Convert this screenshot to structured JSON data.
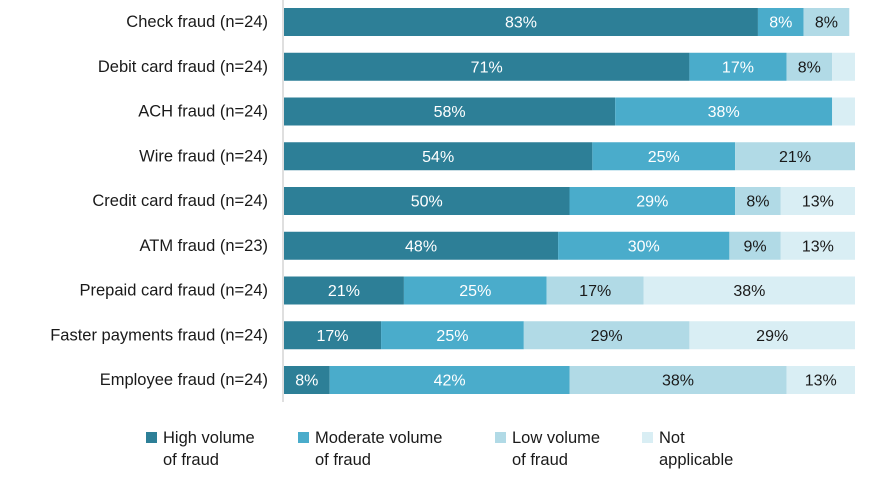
{
  "chart_data": {
    "type": "bar",
    "orientation": "horizontal",
    "stacked": true,
    "title": "",
    "xlabel": "",
    "ylabel": "",
    "xlim": [
      0,
      100
    ],
    "grid": false,
    "legend_position": "bottom",
    "categories": [
      "Check fraud (n=24)",
      "Debit card fraud (n=24)",
      "ACH fraud (n=24)",
      "Wire fraud (n=24)",
      "Credit card fraud (n=24)",
      "ATM fraud (n=23)",
      "Prepaid card fraud (n=24)",
      "Faster payments fraud (n=24)",
      "Employee fraud (n=24)"
    ],
    "series": [
      {
        "name": "High volume of fraud",
        "legend_label": "High volume\nof fraud",
        "color": "#2d7f97",
        "label_color": "#ffffff",
        "values": [
          83,
          71,
          58,
          54,
          50,
          48,
          21,
          17,
          8
        ]
      },
      {
        "name": "Moderate volume of fraud",
        "legend_label": "Moderate volume\nof fraud",
        "color": "#4aaccb",
        "label_color": "#ffffff",
        "values": [
          8,
          17,
          38,
          25,
          29,
          30,
          25,
          25,
          42
        ]
      },
      {
        "name": "Low volume of fraud",
        "legend_label": "Low volume\nof fraud",
        "color": "#b1dae6",
        "label_color": "#1a1a1a",
        "values": [
          8,
          8,
          0,
          21,
          8,
          9,
          17,
          29,
          38
        ]
      },
      {
        "name": "Not applicable",
        "legend_label": "Not\napplicable",
        "color": "#d9eef4",
        "label_color": "#1a1a1a",
        "values": [
          0,
          4,
          4,
          0,
          13,
          13,
          38,
          29,
          13
        ]
      }
    ],
    "data_labels": [
      [
        "83%",
        "8%",
        "8%",
        ""
      ],
      [
        "71%",
        "17%",
        "8%",
        ""
      ],
      [
        "58%",
        "38%",
        "",
        ""
      ],
      [
        "54%",
        "25%",
        "21%",
        ""
      ],
      [
        "50%",
        "29%",
        "8%",
        "13%"
      ],
      [
        "48%",
        "30%",
        "9%",
        "13%"
      ],
      [
        "21%",
        "25%",
        "17%",
        "38%"
      ],
      [
        "17%",
        "25%",
        "29%",
        "29%"
      ],
      [
        "8%",
        "42%",
        "38%",
        "13%"
      ]
    ]
  }
}
